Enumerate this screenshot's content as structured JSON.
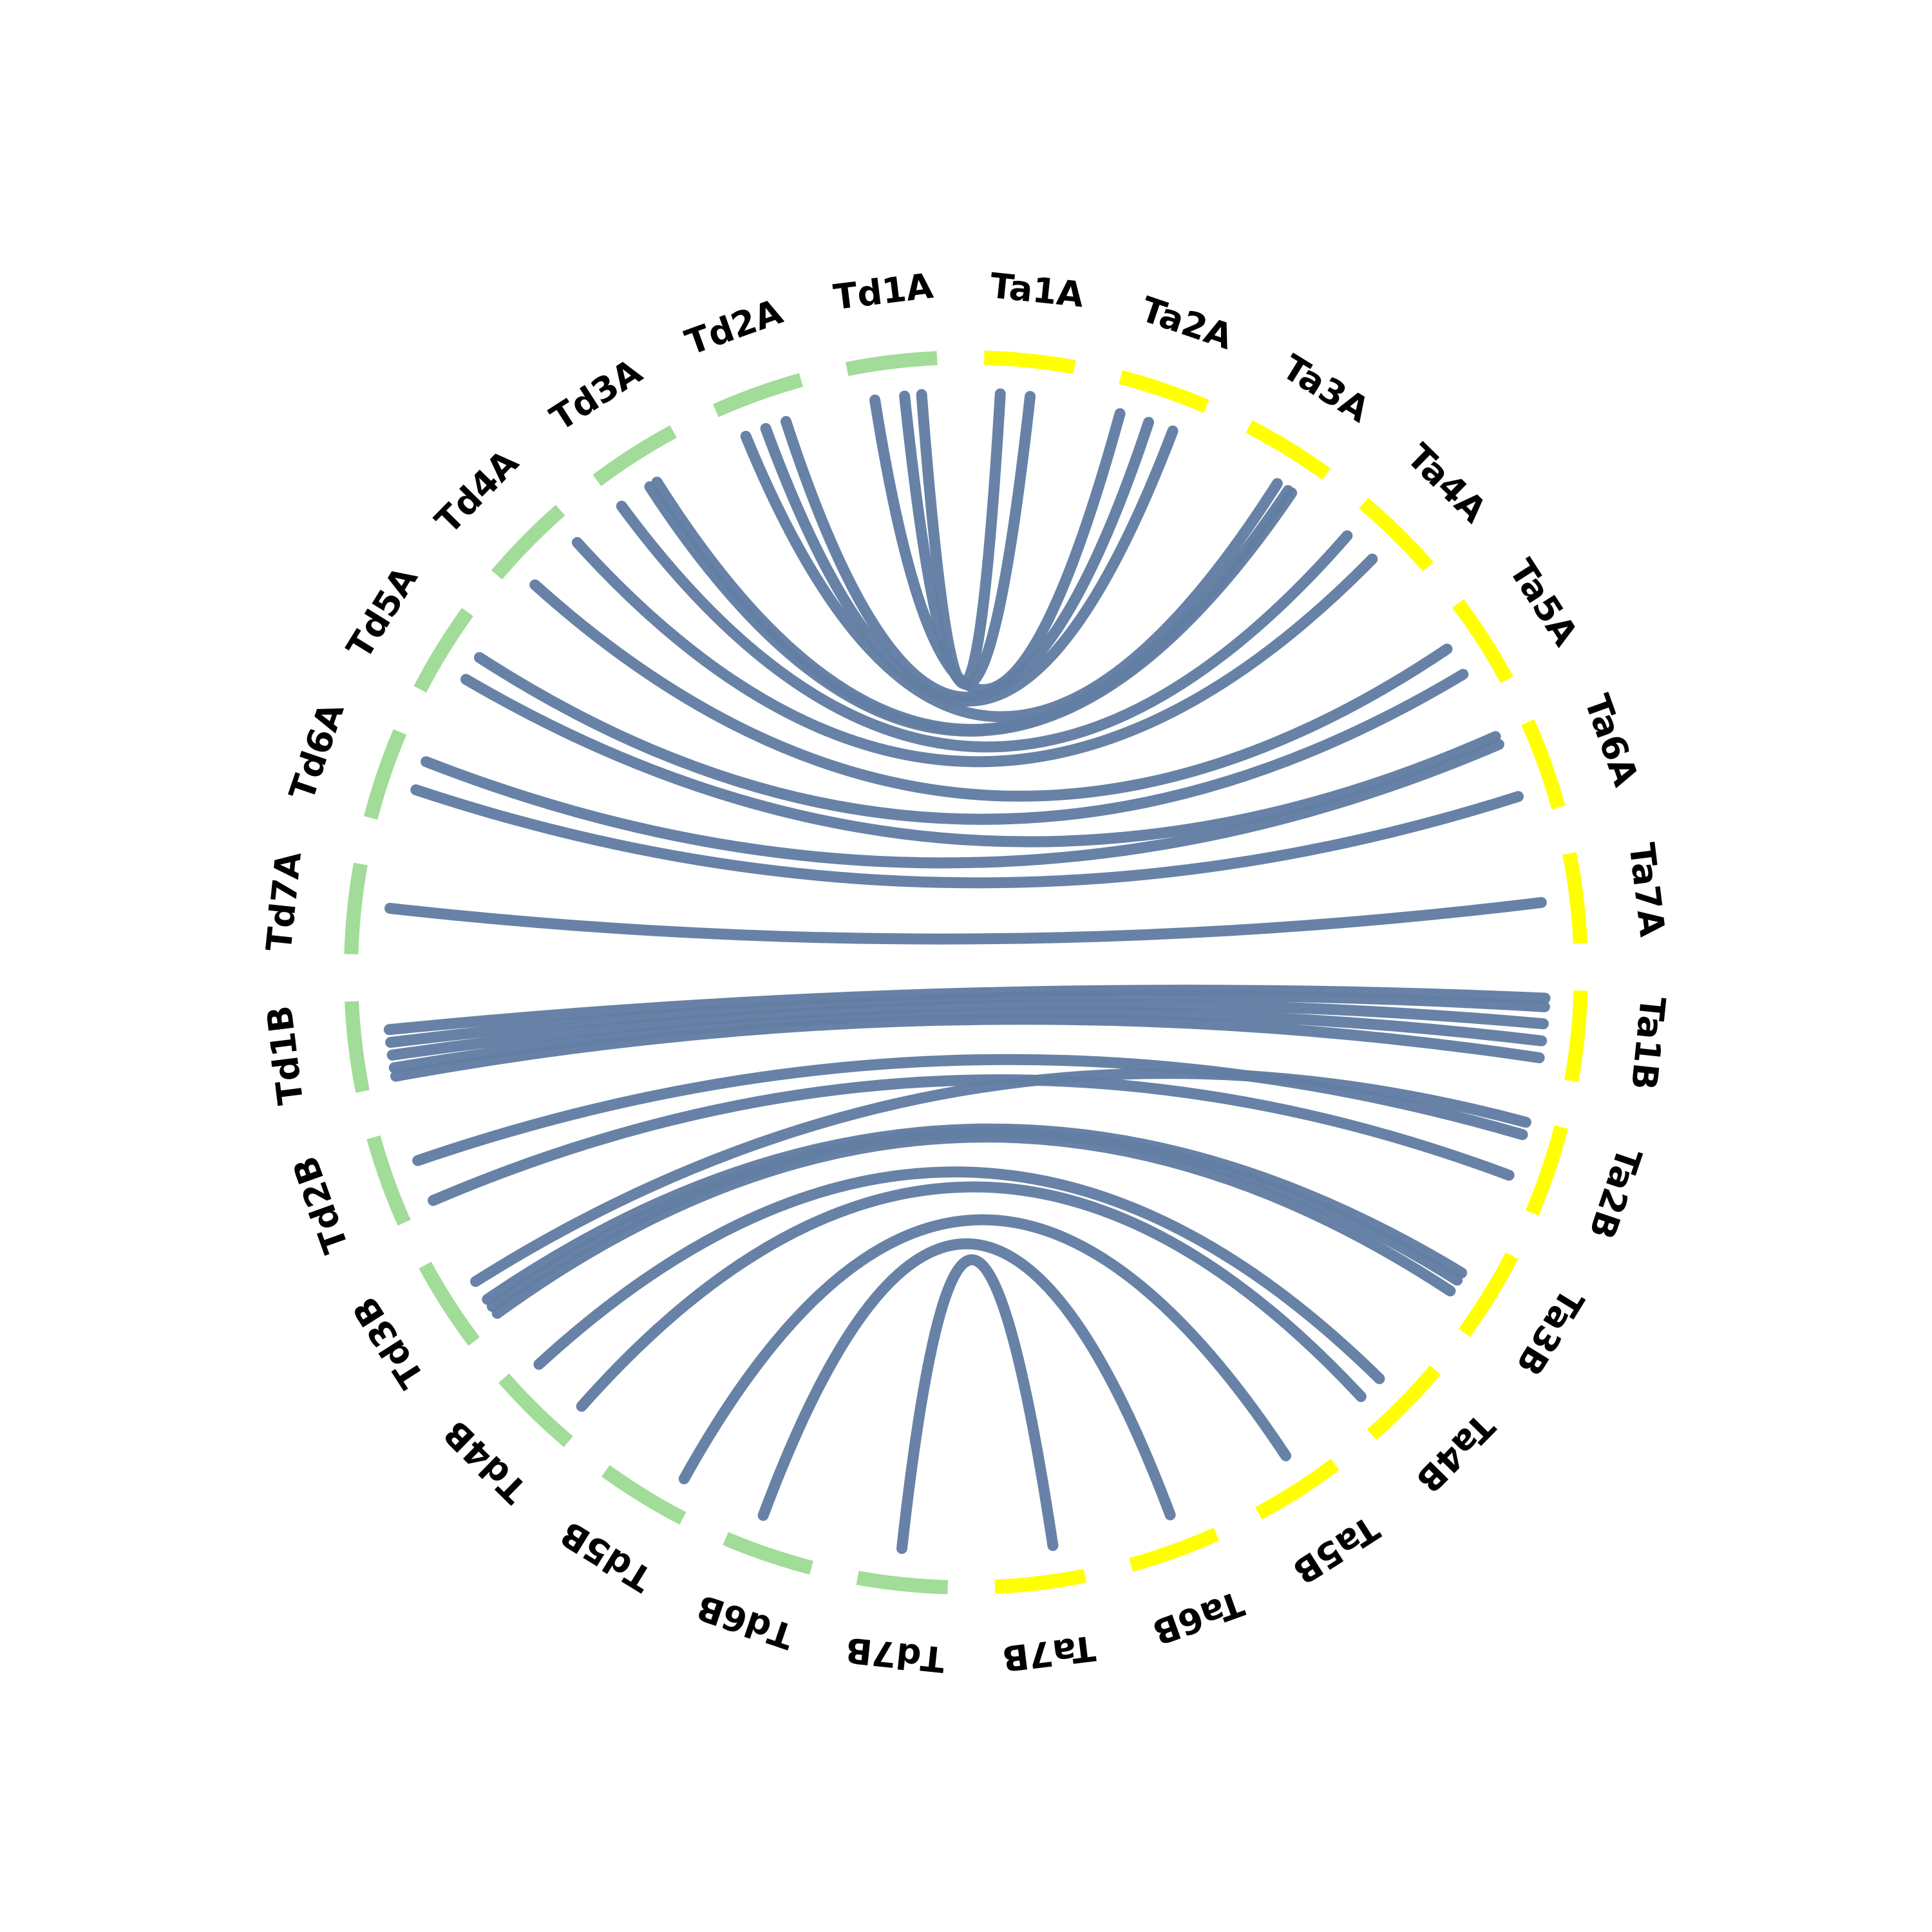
{
  "title": "",
  "colors": {
    "Td": "#a1dc98",
    "Ta": "#ffff00",
    "link": "#627ea3",
    "label": "#000000",
    "background": "#ffffff"
  },
  "chromosomes": [
    {
      "id": "Ta1A",
      "label": "Ta1A",
      "genome": "Ta"
    },
    {
      "id": "Ta2A",
      "label": "Ta2A",
      "genome": "Ta"
    },
    {
      "id": "Ta3A",
      "label": "Ta3A",
      "genome": "Ta"
    },
    {
      "id": "Ta4A",
      "label": "Ta4A",
      "genome": "Ta"
    },
    {
      "id": "Ta5A",
      "label": "Ta5A",
      "genome": "Ta"
    },
    {
      "id": "Ta6A",
      "label": "Ta6A",
      "genome": "Ta"
    },
    {
      "id": "Ta7A",
      "label": "Ta7A",
      "genome": "Ta"
    },
    {
      "id": "Ta1B",
      "label": "Ta1B",
      "genome": "Ta"
    },
    {
      "id": "Ta2B",
      "label": "Ta2B",
      "genome": "Ta"
    },
    {
      "id": "Ta3B",
      "label": "Ta3B",
      "genome": "Ta"
    },
    {
      "id": "Ta4B",
      "label": "Ta4B",
      "genome": "Ta"
    },
    {
      "id": "Ta5B",
      "label": "Ta5B",
      "genome": "Ta"
    },
    {
      "id": "Ta6B",
      "label": "Ta6B",
      "genome": "Ta"
    },
    {
      "id": "Ta7B",
      "label": "Ta7B",
      "genome": "Ta"
    },
    {
      "id": "Td7B",
      "label": "Td7B",
      "genome": "Td"
    },
    {
      "id": "Td6B",
      "label": "Td6B",
      "genome": "Td"
    },
    {
      "id": "Td5B",
      "label": "Td5B",
      "genome": "Td"
    },
    {
      "id": "Td4B",
      "label": "Td4B",
      "genome": "Td"
    },
    {
      "id": "Td3B",
      "label": "Td3B",
      "genome": "Td"
    },
    {
      "id": "Td2B",
      "label": "Td2B",
      "genome": "Td"
    },
    {
      "id": "Td1B",
      "label": "Td1B",
      "genome": "Td"
    },
    {
      "id": "Td7A",
      "label": "Td7A",
      "genome": "Td"
    },
    {
      "id": "Td6A",
      "label": "Td6A",
      "genome": "Td"
    },
    {
      "id": "Td5A",
      "label": "Td5A",
      "genome": "Td"
    },
    {
      "id": "Td4A",
      "label": "Td4A",
      "genome": "Td"
    },
    {
      "id": "Td3A",
      "label": "Td3A",
      "genome": "Td"
    },
    {
      "id": "Td2A",
      "label": "Td2A",
      "genome": "Td"
    },
    {
      "id": "Td1A",
      "label": "Td1A",
      "genome": "Td"
    }
  ],
  "links": [
    {
      "from": "Td1A",
      "f": 0.8,
      "to": "Ta1A",
      "t": 0.2
    },
    {
      "from": "Td1A",
      "f": 0.6,
      "to": "Ta1A",
      "t": 0.55
    },
    {
      "from": "Td1A",
      "f": 0.25,
      "to": "Ta2A",
      "t": 0.1
    },
    {
      "from": "Td2A",
      "f": 0.7,
      "to": "Ta2A",
      "t": 0.45
    },
    {
      "from": "Td2A",
      "f": 0.45,
      "to": "Ta2A",
      "t": 0.75
    },
    {
      "from": "Td2A",
      "f": 0.2,
      "to": "Ta3A",
      "t": 0.6
    },
    {
      "from": "Td3A",
      "f": 0.55,
      "to": "Ta3A",
      "t": 0.75
    },
    {
      "from": "Td3A",
      "f": 0.45,
      "to": "Ta3A",
      "t": 0.8
    },
    {
      "from": "Td3A",
      "f": 0.05,
      "to": "Ta4A",
      "t": 0.1
    },
    {
      "from": "Td4A",
      "f": 0.9,
      "to": "Ta4A",
      "t": 0.5
    },
    {
      "from": "Td4A",
      "f": 0.2,
      "to": "Ta5A",
      "t": 0.35
    },
    {
      "from": "Td5A",
      "f": 0.65,
      "to": "Ta5A",
      "t": 0.7
    },
    {
      "from": "Td5A",
      "f": 0.35,
      "to": "Ta6A",
      "t": 0.0
    },
    {
      "from": "Td6A",
      "f": 0.8,
      "to": "Ta6A",
      "t": 0.1
    },
    {
      "from": "Td6A",
      "f": 0.45,
      "to": "Ta6A",
      "t": 0.75
    },
    {
      "from": "Td7A",
      "f": 0.55,
      "to": "Ta7A",
      "t": 0.5
    },
    {
      "from": "Td1B",
      "f": 0.1,
      "to": "Ta1B",
      "t": 0.8
    },
    {
      "from": "Td1B",
      "f": 0.2,
      "to": "Ta1B",
      "t": 0.6
    },
    {
      "from": "Td1B",
      "f": 0.35,
      "to": "Ta1B",
      "t": 0.4
    },
    {
      "from": "Td1B",
      "f": 0.5,
      "to": "Ta1B",
      "t": 0.2
    },
    {
      "from": "Td1B",
      "f": 0.65,
      "to": "Ta1B",
      "t": 0.1
    },
    {
      "from": "Td2B",
      "f": 0.1,
      "to": "Ta2B",
      "t": 0.7
    },
    {
      "from": "Td2B",
      "f": 0.6,
      "to": "Ta2B",
      "t": 0.2
    },
    {
      "from": "Td3B",
      "f": 0.1,
      "to": "Ta3B",
      "t": 0.7
    },
    {
      "from": "Td3B",
      "f": 0.2,
      "to": "Ta3B",
      "t": 0.55
    },
    {
      "from": "Td3B",
      "f": 0.3,
      "to": "Ta3B",
      "t": 0.45
    },
    {
      "from": "Td3B",
      "f": 0.55,
      "to": "Ta2B",
      "t": 0.05
    },
    {
      "from": "Td4B",
      "f": 0.15,
      "to": "Ta4B",
      "t": 0.8
    },
    {
      "from": "Td4B",
      "f": 0.85,
      "to": "Ta4B",
      "t": 0.5
    },
    {
      "from": "Td5B",
      "f": 0.2,
      "to": "Ta5B",
      "t": 0.4
    },
    {
      "from": "Td6B",
      "f": 0.7,
      "to": "Ta6B",
      "t": 0.4
    },
    {
      "from": "Td7B",
      "f": 0.55,
      "to": "Ta7B",
      "t": 0.3
    }
  ]
}
